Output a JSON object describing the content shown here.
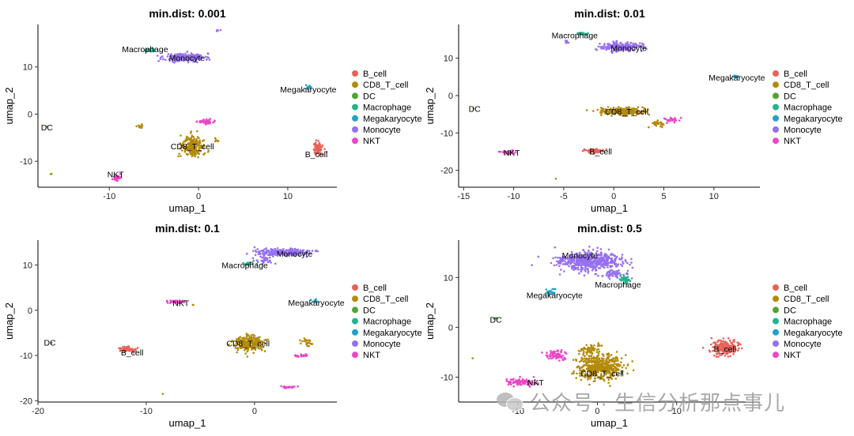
{
  "colors": {
    "B_cell": "#E8625A",
    "CD8_T_cell": "#B38A0B",
    "DC": "#4FA52E",
    "Macrophage": "#1FB58D",
    "Megakaryocyte": "#1FA3C8",
    "Monocyte": "#9670F0",
    "NKT": "#EE45C6"
  },
  "watermark": {
    "text": "公众号 · 生信分析那点事儿",
    "icon": "wechat-icon"
  },
  "chart_data": [
    {
      "type": "scatter",
      "title": "min.dist: 0.001",
      "xlabel": "umap_1",
      "ylabel": "umap_2",
      "xlim": [
        -18,
        15.5
      ],
      "ylim": [
        -15.5,
        19
      ],
      "xticks": [
        -10,
        0,
        10
      ],
      "yticks": [
        -10,
        0,
        10
      ],
      "legend": [
        "B_cell",
        "CD8_T_cell",
        "DC",
        "Macrophage",
        "Megakaryocyte",
        "Monocyte",
        "NKT"
      ],
      "legend_position": "right",
      "clusters": [
        {
          "label": "Monocyte",
          "center": [
            -1.5,
            12
          ],
          "spread": [
            2.0,
            0.8
          ],
          "n": 240
        },
        {
          "label": "Monocyte",
          "center": [
            2.2,
            17.8
          ],
          "spread": [
            0.2,
            0.2
          ],
          "n": 6
        },
        {
          "label": "Macrophage",
          "center": [
            -5.5,
            13.5
          ],
          "spread": [
            0.6,
            0.3
          ],
          "n": 25
        },
        {
          "label": "Megakaryocyte",
          "center": [
            12.4,
            5.6
          ],
          "spread": [
            0.4,
            0.4
          ],
          "n": 14
        },
        {
          "label": "CD8_T_cell",
          "center": [
            -0.7,
            -7.0
          ],
          "spread": [
            1.1,
            2.0
          ],
          "n": 220
        },
        {
          "label": "CD8_T_cell",
          "center": [
            -6.6,
            -2.7
          ],
          "spread": [
            0.3,
            0.4
          ],
          "n": 15
        },
        {
          "label": "CD8_T_cell",
          "center": [
            -16.5,
            -12.7
          ],
          "spread": [
            0.1,
            0.1
          ],
          "n": 2
        },
        {
          "label": "CD8_T_cell",
          "center": [
            2.1,
            -5.6
          ],
          "spread": [
            0.2,
            0.3
          ],
          "n": 6
        },
        {
          "label": "NKT",
          "center": [
            0.8,
            -1.6
          ],
          "spread": [
            0.9,
            0.4
          ],
          "n": 40
        },
        {
          "label": "NKT",
          "center": [
            -9.1,
            -13.5
          ],
          "spread": [
            0.4,
            0.6
          ],
          "n": 25
        },
        {
          "label": "B_cell",
          "center": [
            13.4,
            -7.3
          ],
          "spread": [
            0.5,
            1.3
          ],
          "n": 70
        },
        {
          "label": "DC",
          "center": [
            -17.0,
            -2.7
          ],
          "spread": [
            0.05,
            0.05
          ],
          "n": 1
        }
      ],
      "annotations": [
        {
          "text": "Macrophage",
          "pos": [
            -6.0,
            13.8
          ]
        },
        {
          "text": "Monocyte",
          "pos": [
            -1.3,
            12.0
          ]
        },
        {
          "text": "Megakaryocyte",
          "pos": [
            12.3,
            5.3
          ]
        },
        {
          "text": "DC",
          "pos": [
            -17.0,
            -2.8
          ]
        },
        {
          "text": "CD8_T_cell",
          "pos": [
            -0.7,
            -6.8
          ]
        },
        {
          "text": "B_cell",
          "pos": [
            13.2,
            -8.5
          ]
        },
        {
          "text": "NKT",
          "pos": [
            -9.3,
            -12.7
          ]
        }
      ]
    },
    {
      "type": "scatter",
      "title": "min.dist: 0.01",
      "xlabel": "umap_1",
      "ylabel": "umap_2",
      "xlim": [
        -15.5,
        14.6
      ],
      "ylim": [
        -24.5,
        19
      ],
      "xticks": [
        -15,
        -10,
        -5,
        0,
        5,
        10
      ],
      "yticks": [
        -20,
        -10,
        0,
        10
      ],
      "legend": [
        "B_cell",
        "CD8_T_cell",
        "DC",
        "Macrophage",
        "Megakaryocyte",
        "Monocyte",
        "NKT"
      ],
      "legend_position": "right",
      "clusters": [
        {
          "label": "Monocyte",
          "center": [
            0.8,
            13.0
          ],
          "spread": [
            1.8,
            1.0
          ],
          "n": 240
        },
        {
          "label": "Monocyte",
          "center": [
            -4.7,
            14.4
          ],
          "spread": [
            0.2,
            0.3
          ],
          "n": 8
        },
        {
          "label": "Macrophage",
          "center": [
            -3.2,
            16.5
          ],
          "spread": [
            0.6,
            0.3
          ],
          "n": 25
        },
        {
          "label": "Megakaryocyte",
          "center": [
            12.2,
            5.1
          ],
          "spread": [
            0.3,
            0.2
          ],
          "n": 10
        },
        {
          "label": "CD8_T_cell",
          "center": [
            0.8,
            -4.2
          ],
          "spread": [
            2.0,
            0.9
          ],
          "n": 230
        },
        {
          "label": "CD8_T_cell",
          "center": [
            4.4,
            -7.6
          ],
          "spread": [
            0.7,
            0.8
          ],
          "n": 25
        },
        {
          "label": "CD8_T_cell",
          "center": [
            -5.8,
            -22.2
          ],
          "spread": [
            0.05,
            0.05
          ],
          "n": 1
        },
        {
          "label": "NKT",
          "center": [
            5.7,
            -6.5
          ],
          "spread": [
            0.7,
            0.6
          ],
          "n": 30
        },
        {
          "label": "B_cell",
          "center": [
            -2.0,
            -14.8
          ],
          "spread": [
            0.9,
            0.5
          ],
          "n": 60
        },
        {
          "label": "NKT",
          "center": [
            -10.6,
            -15.2
          ],
          "spread": [
            0.8,
            0.4
          ],
          "n": 45
        },
        {
          "label": "DC",
          "center": [
            -14.0,
            -3.5
          ],
          "spread": [
            0.05,
            0.05
          ],
          "n": 1
        }
      ],
      "annotations": [
        {
          "text": "Macrophage",
          "pos": [
            -3.9,
            16.2
          ]
        },
        {
          "text": "Monocyte",
          "pos": [
            1.5,
            12.8
          ]
        },
        {
          "text": "Megakaryocyte",
          "pos": [
            12.3,
            4.9
          ]
        },
        {
          "text": "DC",
          "pos": [
            -13.9,
            -3.5
          ]
        },
        {
          "text": "CD8_T_cell",
          "pos": [
            1.3,
            -4.2
          ]
        },
        {
          "text": "B_cell",
          "pos": [
            -1.3,
            -14.9
          ]
        },
        {
          "text": "NKT",
          "pos": [
            -10.2,
            -15.2
          ]
        }
      ]
    },
    {
      "type": "scatter",
      "title": "min.dist: 0.1",
      "xlabel": "umap_1",
      "ylabel": "umap_2",
      "xlim": [
        -20,
        7.6
      ],
      "ylim": [
        -20.3,
        15.5
      ],
      "xticks": [
        -20,
        -10,
        0
      ],
      "yticks": [
        -20,
        -10,
        0,
        10
      ],
      "legend": [
        "B_cell",
        "CD8_T_cell",
        "DC",
        "Macrophage",
        "Megakaryocyte",
        "Monocyte",
        "NKT"
      ],
      "legend_position": "right",
      "clusters": [
        {
          "label": "Monocyte",
          "center": [
            2.8,
            12.8
          ],
          "spread": [
            2.3,
            0.7
          ],
          "n": 260
        },
        {
          "label": "Monocyte",
          "center": [
            0.8,
            11.0
          ],
          "spread": [
            0.8,
            0.6
          ],
          "n": 30
        },
        {
          "label": "Macrophage",
          "center": [
            -0.5,
            10.3
          ],
          "spread": [
            0.5,
            0.3
          ],
          "n": 20
        },
        {
          "label": "Megakaryocyte",
          "center": [
            5.6,
            2.1
          ],
          "spread": [
            0.2,
            0.4
          ],
          "n": 12
        },
        {
          "label": "CD8_T_cell",
          "center": [
            -0.5,
            -7.3
          ],
          "spread": [
            1.2,
            1.5
          ],
          "n": 230
        },
        {
          "label": "CD8_T_cell",
          "center": [
            4.9,
            -7.2
          ],
          "spread": [
            0.6,
            0.8
          ],
          "n": 25
        },
        {
          "label": "CD8_T_cell",
          "center": [
            -5.7,
            1.2
          ],
          "spread": [
            0.1,
            0.1
          ],
          "n": 2
        },
        {
          "label": "CD8_T_cell",
          "center": [
            -8.5,
            -18.5
          ],
          "spread": [
            0.05,
            0.05
          ],
          "n": 1
        },
        {
          "label": "NKT",
          "center": [
            -7.2,
            1.9
          ],
          "spread": [
            0.8,
            0.3
          ],
          "n": 40
        },
        {
          "label": "NKT",
          "center": [
            4.3,
            -10.0
          ],
          "spread": [
            0.6,
            0.3
          ],
          "n": 25
        },
        {
          "label": "NKT",
          "center": [
            3.2,
            -17.0
          ],
          "spread": [
            0.6,
            0.2
          ],
          "n": 25
        },
        {
          "label": "B_cell",
          "center": [
            -11.7,
            -8.6
          ],
          "spread": [
            0.7,
            0.5
          ],
          "n": 55
        },
        {
          "label": "DC",
          "center": [
            -18.8,
            -7.2
          ],
          "spread": [
            0.05,
            0.05
          ],
          "n": 1
        }
      ],
      "annotations": [
        {
          "text": "Monocyte",
          "pos": [
            3.7,
            12.5
          ]
        },
        {
          "text": "Macrophage",
          "pos": [
            -0.9,
            10.0
          ]
        },
        {
          "text": "Megakaryocyte",
          "pos": [
            5.7,
            1.7
          ]
        },
        {
          "text": "NKT",
          "pos": [
            -6.8,
            1.6
          ]
        },
        {
          "text": "DC",
          "pos": [
            -18.9,
            -7.1
          ]
        },
        {
          "text": "CD8_T_cell",
          "pos": [
            -0.6,
            -7.3
          ]
        },
        {
          "text": "B_cell",
          "pos": [
            -11.3,
            -9.3
          ]
        }
      ]
    },
    {
      "type": "scatter",
      "title": "min.dist: 0.5",
      "xlabel": "umap_1",
      "ylabel": "umap_2",
      "xlim": [
        -17.5,
        20.5
      ],
      "ylim": [
        -15,
        17.5
      ],
      "xticks": [
        -10,
        0,
        10
      ],
      "yticks": [
        -10,
        0,
        10
      ],
      "legend": [
        "B_cell",
        "CD8_T_cell",
        "DC",
        "Macrophage",
        "Megakaryocyte",
        "Monocyte",
        "NKT"
      ],
      "legend_position": "right",
      "clusters": [
        {
          "label": "Monocyte",
          "center": [
            -1.0,
            13.3
          ],
          "spread": [
            3.6,
            1.7
          ],
          "n": 520
        },
        {
          "label": "Monocyte",
          "center": [
            2.0,
            10.6
          ],
          "spread": [
            1.5,
            0.8
          ],
          "n": 60
        },
        {
          "label": "Macrophage",
          "center": [
            3.5,
            9.6
          ],
          "spread": [
            0.6,
            0.7
          ],
          "n": 40
        },
        {
          "label": "Megakaryocyte",
          "center": [
            -5.9,
            7.1
          ],
          "spread": [
            0.5,
            0.6
          ],
          "n": 25
        },
        {
          "label": "CD8_T_cell",
          "center": [
            0.3,
            -8.0
          ],
          "spread": [
            2.6,
            2.3
          ],
          "n": 480
        },
        {
          "label": "CD8_T_cell",
          "center": [
            -0.8,
            -4.5
          ],
          "spread": [
            1.2,
            0.8
          ],
          "n": 60
        },
        {
          "label": "CD8_T_cell",
          "center": [
            -15.7,
            -6.2
          ],
          "spread": [
            0.05,
            0.05
          ],
          "n": 1
        },
        {
          "label": "NKT",
          "center": [
            -5.2,
            -5.6
          ],
          "spread": [
            1.1,
            0.9
          ],
          "n": 70
        },
        {
          "label": "NKT",
          "center": [
            -9.5,
            -11.0
          ],
          "spread": [
            1.7,
            0.6
          ],
          "n": 80
        },
        {
          "label": "B_cell",
          "center": [
            16.1,
            -4.2
          ],
          "spread": [
            1.6,
            1.4
          ],
          "n": 200
        },
        {
          "label": "DC",
          "center": [
            -12.8,
            1.8
          ],
          "spread": [
            0.2,
            0.2
          ],
          "n": 6
        }
      ],
      "annotations": [
        {
          "text": "Monocyte",
          "pos": [
            -2.2,
            14.5
          ]
        },
        {
          "text": "Macrophage",
          "pos": [
            2.6,
            8.6
          ]
        },
        {
          "text": "Megakaryocyte",
          "pos": [
            -5.4,
            6.5
          ]
        },
        {
          "text": "DC",
          "pos": [
            -12.8,
            1.6
          ]
        },
        {
          "text": "CD8_T_cell",
          "pos": [
            0.6,
            -9.2
          ]
        },
        {
          "text": "B_cell",
          "pos": [
            16.1,
            -4.3
          ]
        },
        {
          "text": "NKT",
          "pos": [
            -7.8,
            -11.0
          ]
        }
      ]
    }
  ]
}
